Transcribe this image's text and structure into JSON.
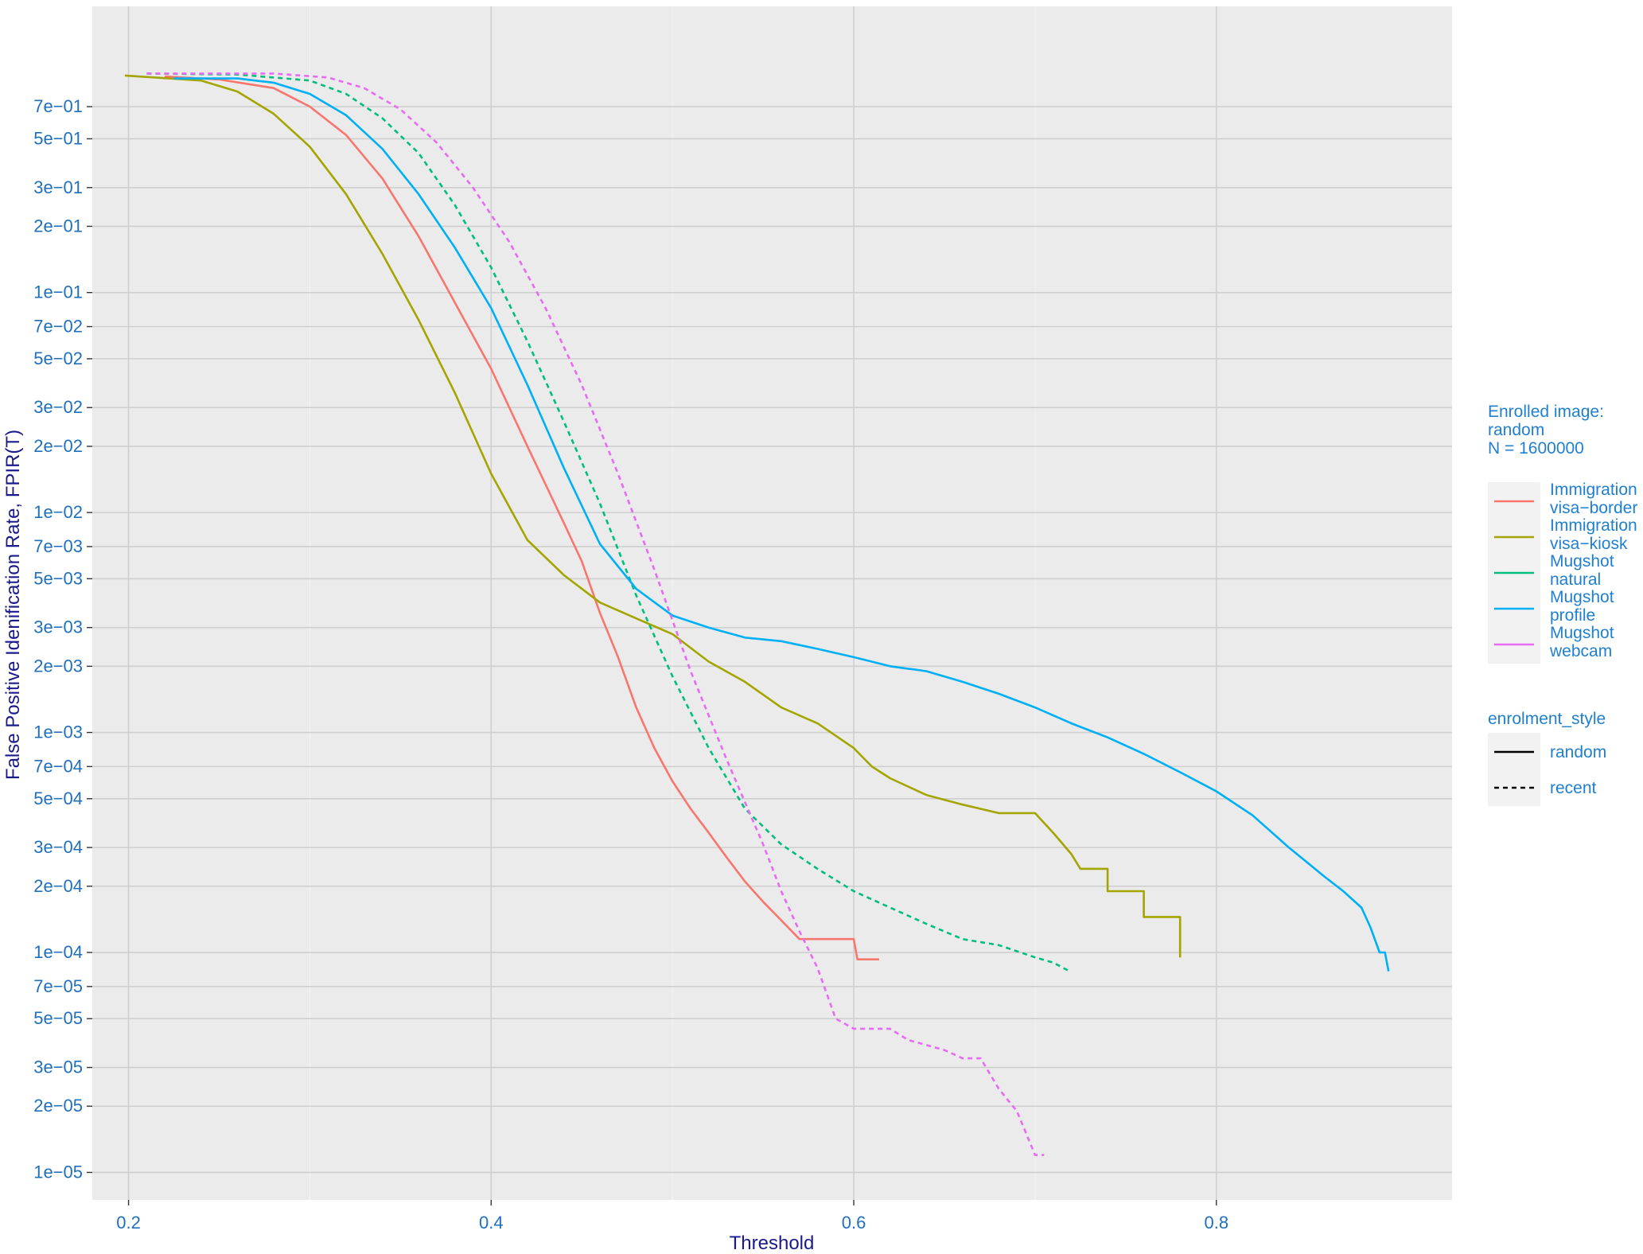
{
  "chart_data": {
    "type": "line",
    "title": "",
    "xlabel": "Threshold",
    "ylabel": "False Positive Idenification Rate, FPIR(T)",
    "x_scale": "linear",
    "y_scale": "log10",
    "xlim": [
      0.18,
      0.93
    ],
    "ylim": [
      7.5e-06,
      2.0
    ],
    "x_ticks": [
      0.2,
      0.4,
      0.6,
      0.8
    ],
    "x_tick_labels": [
      "0.2",
      "0.4",
      "0.6",
      "0.8"
    ],
    "y_ticks": [
      0.7,
      0.5,
      0.3,
      0.2,
      0.1,
      0.07,
      0.05,
      0.03,
      0.02,
      0.01,
      0.007,
      0.005,
      0.003,
      0.002,
      0.001,
      0.0007,
      0.0005,
      0.0003,
      0.0002,
      0.0001,
      7e-05,
      5e-05,
      3e-05,
      2e-05,
      1e-05
    ],
    "y_tick_labels": [
      "7e−01",
      "5e−01",
      "3e−01",
      "2e−01",
      "1e−01",
      "7e−02",
      "5e−02",
      "3e−02",
      "2e−02",
      "1e−02",
      "7e−03",
      "5e−03",
      "3e−03",
      "2e−03",
      "1e−03",
      "7e−04",
      "5e−04",
      "3e−04",
      "2e−04",
      "1e−04",
      "7e−05",
      "5e−05",
      "3e−05",
      "2e−05",
      "1e−05"
    ],
    "grid": true,
    "legend_position": "right",
    "color_legend": {
      "title_lines": [
        "Enrolled image:",
        "random",
        "N = 1600000"
      ],
      "entries": [
        {
          "lines": [
            "Immigration",
            "visa−border"
          ],
          "color": "#F8766D"
        },
        {
          "lines": [
            "Immigration",
            "visa−kiosk"
          ],
          "color": "#A3A500"
        },
        {
          "lines": [
            "Mugshot",
            "natural"
          ],
          "color": "#00BF7D"
        },
        {
          "lines": [
            "Mugshot",
            "profile"
          ],
          "color": "#00B0F6"
        },
        {
          "lines": [
            "Mugshot",
            "webcam"
          ],
          "color": "#E76BF3"
        }
      ]
    },
    "linetype_legend": {
      "title": "enrolment_style",
      "entries": [
        {
          "label": "random",
          "dash": "solid"
        },
        {
          "label": "recent",
          "dash": "dashed"
        }
      ]
    },
    "series": [
      {
        "name": "Immigration visa−border",
        "color": "#F8766D",
        "dash": "solid",
        "points": [
          [
            0.22,
            0.96
          ],
          [
            0.25,
            0.93
          ],
          [
            0.28,
            0.85
          ],
          [
            0.3,
            0.7
          ],
          [
            0.32,
            0.52
          ],
          [
            0.34,
            0.33
          ],
          [
            0.36,
            0.18
          ],
          [
            0.38,
            0.09
          ],
          [
            0.4,
            0.045
          ],
          [
            0.42,
            0.02
          ],
          [
            0.44,
            0.009
          ],
          [
            0.45,
            0.006
          ],
          [
            0.46,
            0.0035
          ],
          [
            0.47,
            0.0022
          ],
          [
            0.48,
            0.0013
          ],
          [
            0.49,
            0.00085
          ],
          [
            0.5,
            0.0006
          ],
          [
            0.51,
            0.00045
          ],
          [
            0.52,
            0.00035
          ],
          [
            0.53,
            0.00027
          ],
          [
            0.54,
            0.00021
          ],
          [
            0.55,
            0.00017
          ],
          [
            0.56,
            0.00014
          ],
          [
            0.57,
            0.000115
          ],
          [
            0.6,
            0.000115
          ],
          [
            0.602,
            9.3e-05
          ],
          [
            0.614,
            9.3e-05
          ]
        ]
      },
      {
        "name": "Immigration visa−kiosk",
        "color": "#A3A500",
        "dash": "solid",
        "points": [
          [
            0.198,
            0.97
          ],
          [
            0.24,
            0.92
          ],
          [
            0.26,
            0.82
          ],
          [
            0.28,
            0.65
          ],
          [
            0.3,
            0.46
          ],
          [
            0.32,
            0.28
          ],
          [
            0.34,
            0.15
          ],
          [
            0.36,
            0.075
          ],
          [
            0.38,
            0.035
          ],
          [
            0.4,
            0.015
          ],
          [
            0.42,
            0.0075
          ],
          [
            0.44,
            0.0052
          ],
          [
            0.46,
            0.0039
          ],
          [
            0.48,
            0.0033
          ],
          [
            0.5,
            0.0028
          ],
          [
            0.52,
            0.0021
          ],
          [
            0.54,
            0.0017
          ],
          [
            0.56,
            0.0013
          ],
          [
            0.58,
            0.0011
          ],
          [
            0.6,
            0.00085
          ],
          [
            0.61,
            0.0007
          ],
          [
            0.62,
            0.00062
          ],
          [
            0.64,
            0.00052
          ],
          [
            0.66,
            0.00047
          ],
          [
            0.68,
            0.00043
          ],
          [
            0.7,
            0.00043
          ],
          [
            0.71,
            0.00035
          ],
          [
            0.72,
            0.00028
          ],
          [
            0.725,
            0.00024
          ],
          [
            0.74,
            0.00024
          ],
          [
            0.74,
            0.00019
          ],
          [
            0.76,
            0.00019
          ],
          [
            0.76,
            0.000145
          ],
          [
            0.78,
            0.000145
          ],
          [
            0.78,
            9.5e-05
          ]
        ]
      },
      {
        "name": "Mugshot natural",
        "color": "#00BF7D",
        "dash": "dashed",
        "points": [
          [
            0.21,
            0.99
          ],
          [
            0.26,
            0.98
          ],
          [
            0.3,
            0.92
          ],
          [
            0.32,
            0.8
          ],
          [
            0.34,
            0.62
          ],
          [
            0.36,
            0.43
          ],
          [
            0.38,
            0.25
          ],
          [
            0.4,
            0.13
          ],
          [
            0.42,
            0.06
          ],
          [
            0.44,
            0.026
          ],
          [
            0.46,
            0.011
          ],
          [
            0.48,
            0.0042
          ],
          [
            0.5,
            0.0018
          ],
          [
            0.52,
            0.00085
          ],
          [
            0.54,
            0.00045
          ],
          [
            0.56,
            0.00031
          ],
          [
            0.58,
            0.00024
          ],
          [
            0.6,
            0.00019
          ],
          [
            0.62,
            0.00016
          ],
          [
            0.64,
            0.000135
          ],
          [
            0.66,
            0.000115
          ],
          [
            0.68,
            0.000108
          ],
          [
            0.7,
            9.5e-05
          ],
          [
            0.71,
            9e-05
          ],
          [
            0.718,
            8.3e-05
          ]
        ]
      },
      {
        "name": "Mugshot profile",
        "color": "#00B0F6",
        "dash": "solid",
        "points": [
          [
            0.225,
            0.94
          ],
          [
            0.26,
            0.94
          ],
          [
            0.28,
            0.9
          ],
          [
            0.3,
            0.8
          ],
          [
            0.32,
            0.64
          ],
          [
            0.34,
            0.45
          ],
          [
            0.36,
            0.28
          ],
          [
            0.38,
            0.16
          ],
          [
            0.4,
            0.085
          ],
          [
            0.42,
            0.038
          ],
          [
            0.44,
            0.016
          ],
          [
            0.46,
            0.0072
          ],
          [
            0.48,
            0.0045
          ],
          [
            0.5,
            0.0034
          ],
          [
            0.52,
            0.003
          ],
          [
            0.54,
            0.0027
          ],
          [
            0.56,
            0.0026
          ],
          [
            0.58,
            0.0024
          ],
          [
            0.6,
            0.0022
          ],
          [
            0.62,
            0.002
          ],
          [
            0.64,
            0.0019
          ],
          [
            0.66,
            0.0017
          ],
          [
            0.68,
            0.0015
          ],
          [
            0.7,
            0.0013
          ],
          [
            0.72,
            0.0011
          ],
          [
            0.74,
            0.00095
          ],
          [
            0.76,
            0.0008
          ],
          [
            0.78,
            0.00066
          ],
          [
            0.8,
            0.00054
          ],
          [
            0.82,
            0.00042
          ],
          [
            0.84,
            0.0003
          ],
          [
            0.86,
            0.00022
          ],
          [
            0.87,
            0.00019
          ],
          [
            0.88,
            0.00016
          ],
          [
            0.885,
            0.00013
          ],
          [
            0.89,
            0.0001
          ],
          [
            0.893,
            0.0001
          ],
          [
            0.895,
            8.2e-05
          ]
        ]
      },
      {
        "name": "Mugshot webcam",
        "color": "#E76BF3",
        "dash": "dashed",
        "points": [
          [
            0.21,
            0.99
          ],
          [
            0.28,
            0.99
          ],
          [
            0.31,
            0.95
          ],
          [
            0.33,
            0.85
          ],
          [
            0.35,
            0.68
          ],
          [
            0.37,
            0.48
          ],
          [
            0.39,
            0.3
          ],
          [
            0.41,
            0.17
          ],
          [
            0.43,
            0.085
          ],
          [
            0.45,
            0.038
          ],
          [
            0.47,
            0.015
          ],
          [
            0.49,
            0.0055
          ],
          [
            0.51,
            0.0019
          ],
          [
            0.53,
            0.00075
          ],
          [
            0.55,
            0.00031
          ],
          [
            0.56,
            0.00019
          ],
          [
            0.57,
            0.000125
          ],
          [
            0.58,
            8.5e-05
          ],
          [
            0.59,
            5e-05
          ],
          [
            0.6,
            4.5e-05
          ],
          [
            0.62,
            4.5e-05
          ],
          [
            0.63,
            4e-05
          ],
          [
            0.65,
            3.6e-05
          ],
          [
            0.66,
            3.3e-05
          ],
          [
            0.67,
            3.3e-05
          ],
          [
            0.68,
            2.4e-05
          ],
          [
            0.69,
            1.9e-05
          ],
          [
            0.7,
            1.2e-05
          ],
          [
            0.705,
            1.2e-05
          ]
        ]
      }
    ]
  }
}
